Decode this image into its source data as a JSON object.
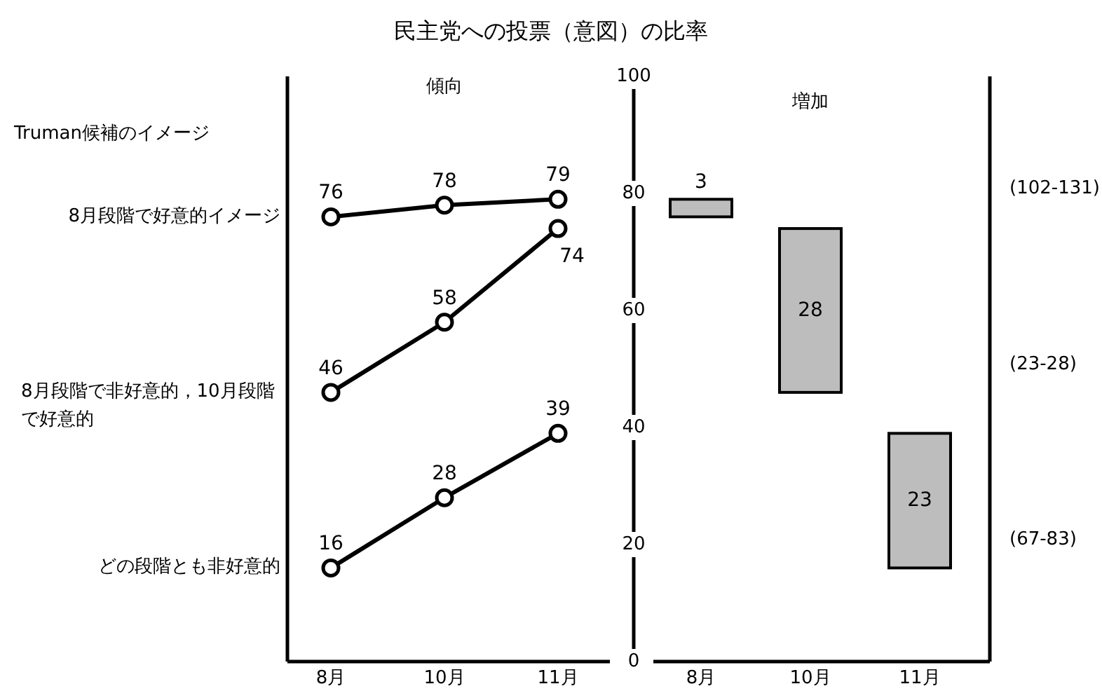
{
  "chart_data": [
    {
      "type": "line",
      "title": "民主党への投票（意図）の比率",
      "subtitle": "傾向",
      "legend_title": "Truman候補のイメージ",
      "categories": [
        "8月",
        "10月",
        "11月"
      ],
      "ylim": [
        0,
        100
      ],
      "tick_labels": "x",
      "marker": "circle",
      "data_labels": true,
      "grid": false,
      "series": [
        {
          "name": "8月段階で好意的イメージ",
          "color": "#000000",
          "values": [
            76,
            78,
            79
          ]
        },
        {
          "name": "8月段階で非好意的，10月段階で好意的",
          "color": "#000000",
          "values": [
            46,
            58,
            74
          ]
        },
        {
          "name": "どの段階とも非好意的",
          "color": "#000000",
          "values": [
            16,
            28,
            39
          ]
        }
      ]
    },
    {
      "type": "bar",
      "subtitle": "増加",
      "categories": [
        "8月",
        "10月",
        "11月"
      ],
      "values": [
        3,
        28,
        23
      ],
      "base": [
        76,
        46,
        16
      ],
      "color": "#bdbdbd",
      "ylim": [
        0,
        100
      ],
      "yticks": [
        0,
        20,
        40,
        60,
        80,
        100
      ],
      "data_labels": true,
      "grid": false,
      "annotations": [
        "(102-131)",
        "(23-28)",
        "(67-83)"
      ]
    }
  ]
}
